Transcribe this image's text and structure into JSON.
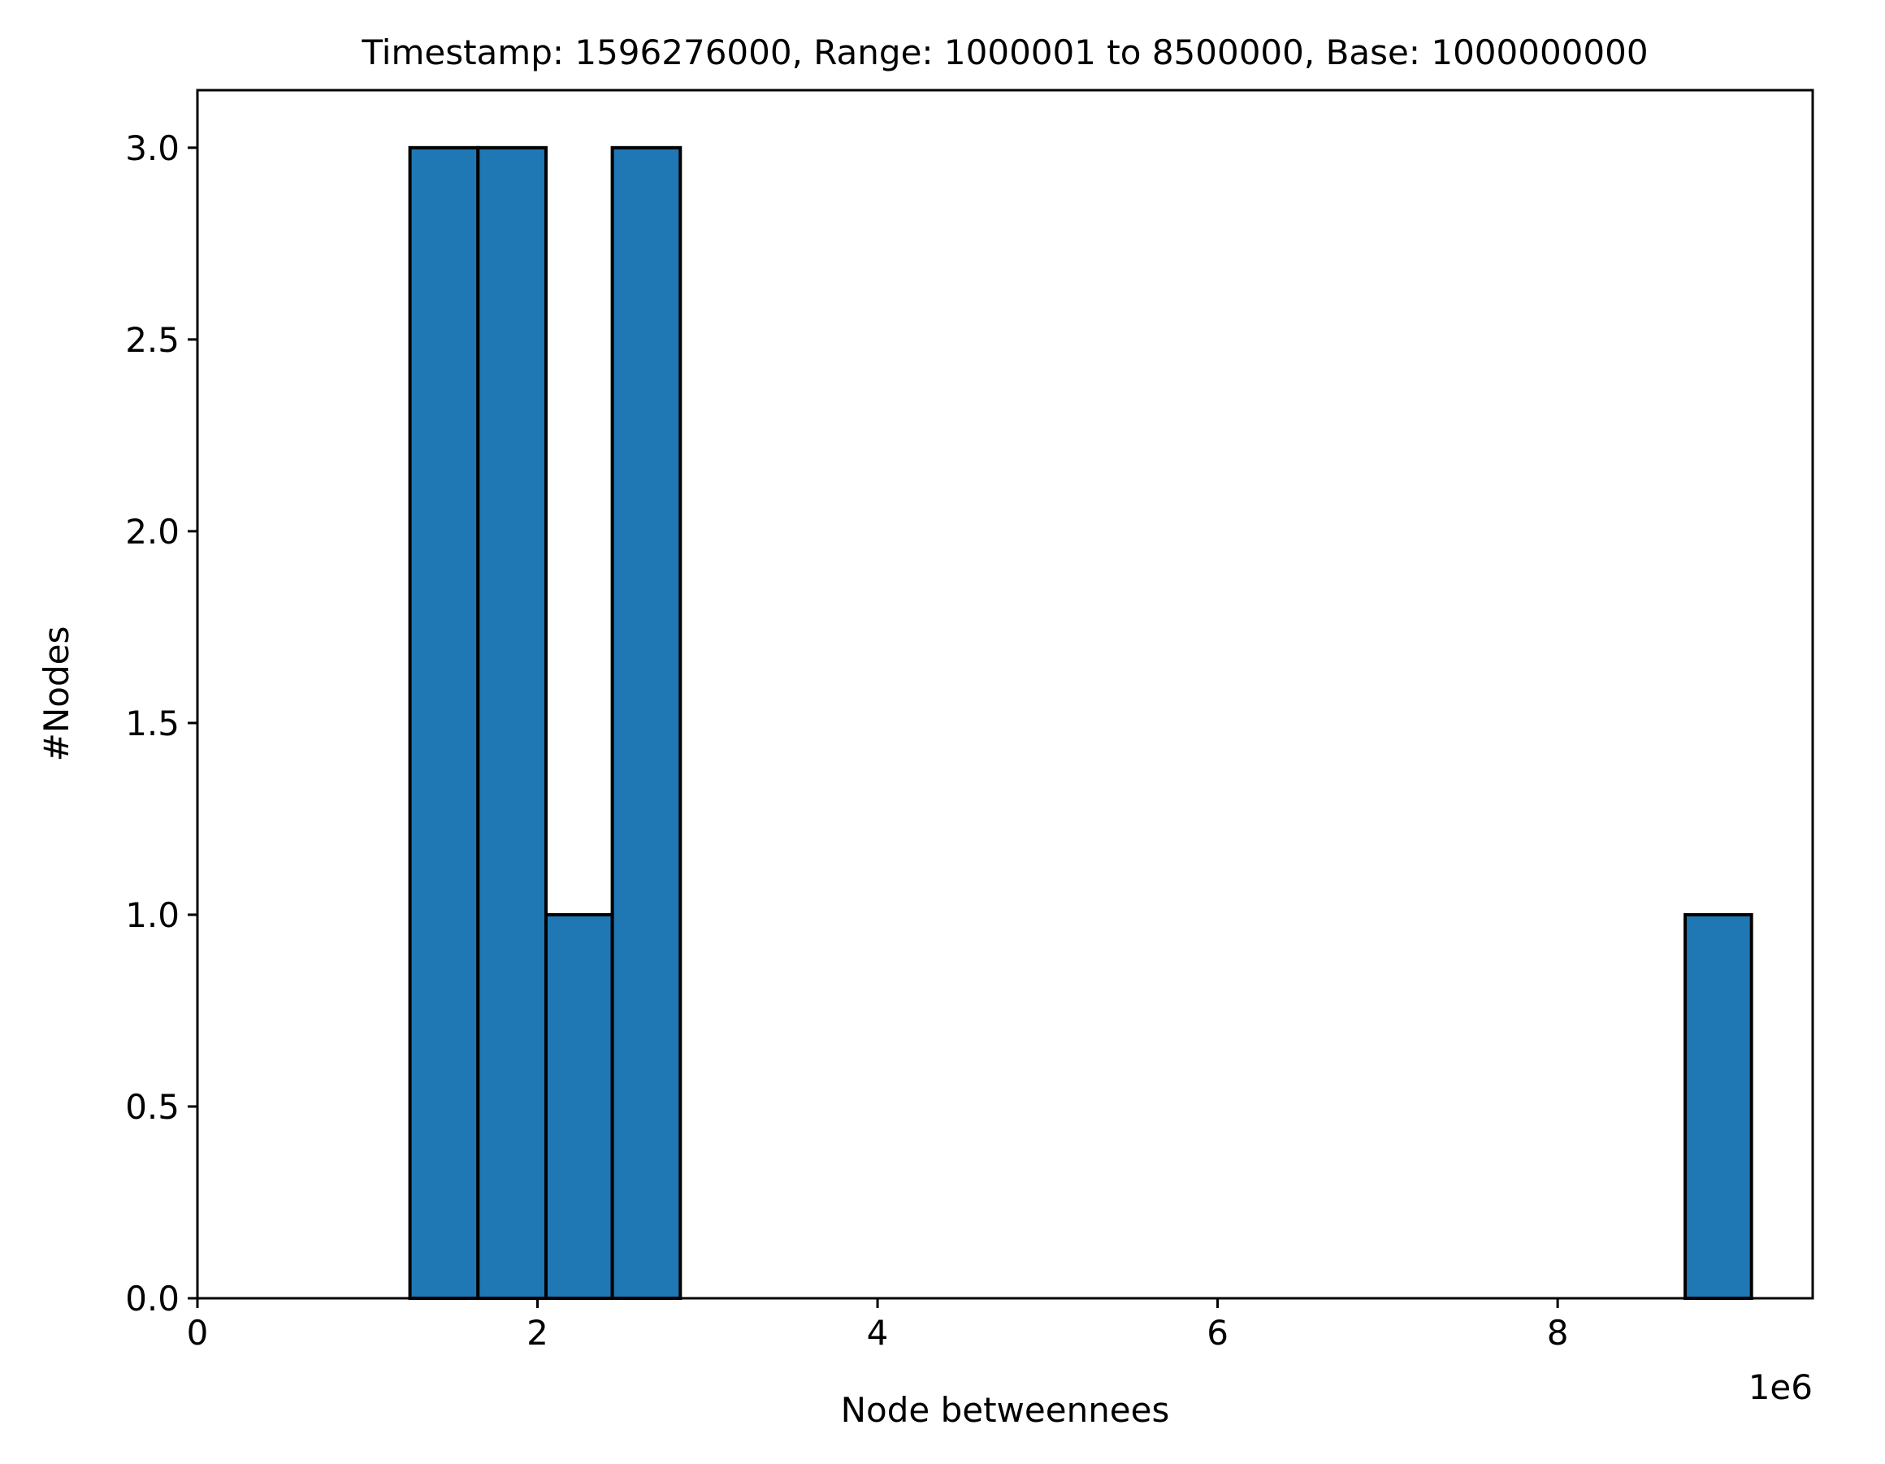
{
  "chart_data": {
    "type": "bar",
    "title": "Timestamp: 1596276000, Range: 1000001 to 8500000, Base: 1000000000",
    "xlabel": "Node betweennees",
    "ylabel": "#Nodes",
    "x_offset_label": "1e6",
    "xlim": [
      0,
      9.5
    ],
    "ylim": [
      0,
      3.15
    ],
    "x_ticks": [
      0,
      2,
      4,
      6,
      8
    ],
    "x_tick_labels": [
      "0",
      "2",
      "4",
      "6",
      "8"
    ],
    "y_ticks": [
      0,
      0.5,
      1,
      1.5,
      2,
      2.5,
      3
    ],
    "y_tick_labels": [
      "0.0",
      "0.5",
      "1.0",
      "1.5",
      "2.0",
      "2.5",
      "3.0"
    ],
    "bins": [
      {
        "x0": 1.25,
        "x1": 1.65,
        "count": 3
      },
      {
        "x0": 1.65,
        "x1": 2.05,
        "count": 3
      },
      {
        "x0": 2.05,
        "x1": 2.44,
        "count": 1
      },
      {
        "x0": 2.44,
        "x1": 2.84,
        "count": 3
      },
      {
        "x0": 2.84,
        "x1": 8.75,
        "count": 0
      },
      {
        "x0": 8.75,
        "x1": 9.14,
        "count": 1
      }
    ],
    "bar_color": "#1f77b4",
    "edge_color": "#000000",
    "grid": false,
    "legend": "none"
  }
}
